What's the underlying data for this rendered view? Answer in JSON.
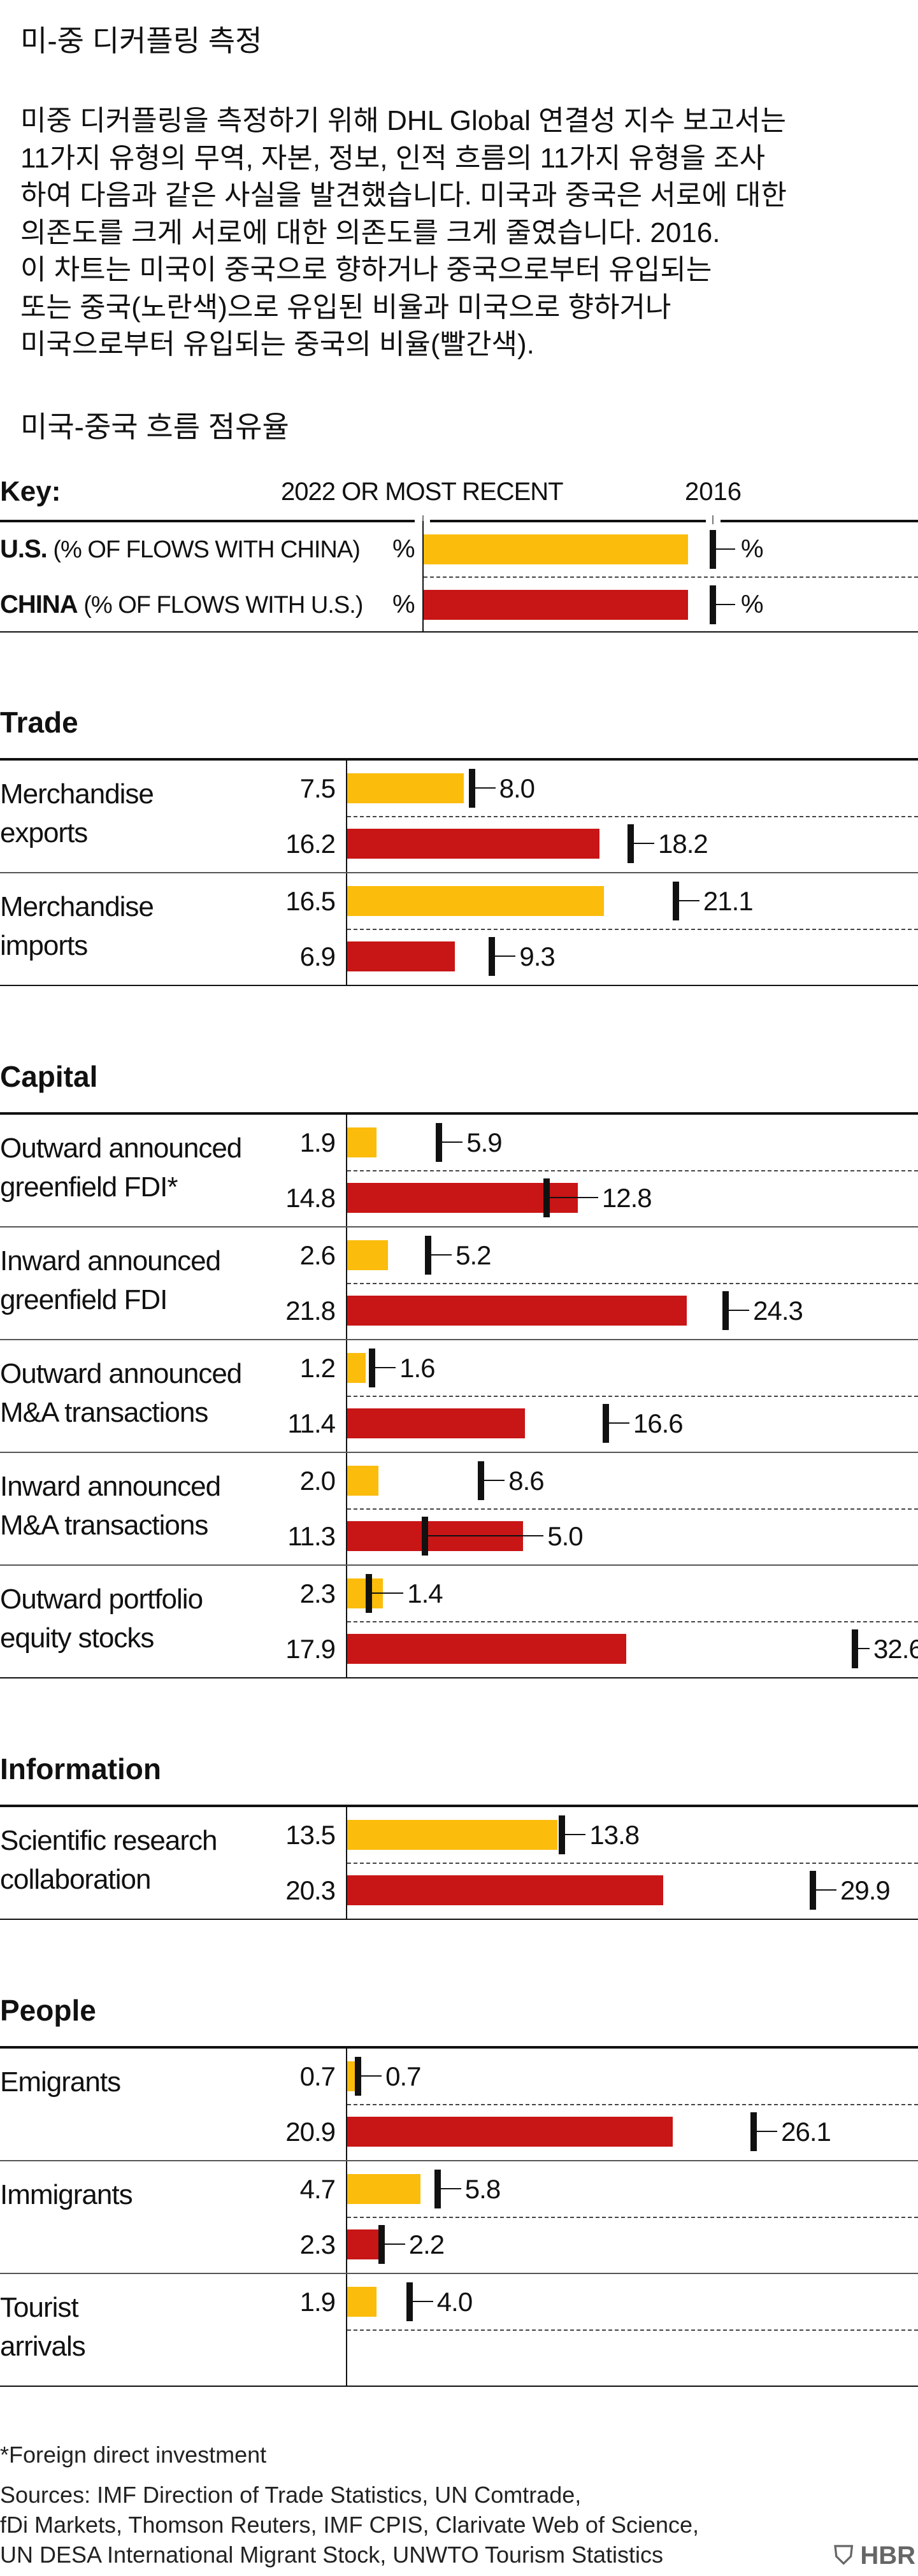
{
  "title": "미-중 디커플링 측정",
  "body_lines": [
    "미중 디커플링을 측정하기 위해 DHL Global 연결성 지수 보고서는",
    "11가지 유형의 무역, 자본, 정보, 인적 흐름의 11가지 유형을 조사",
    "하여 다음과 같은 사실을 발견했습니다. 미국과 중국은 서로에 대한",
    "의존도를 크게 서로에 대한 의존도를 크게 줄였습니다. 2016.",
    "이 차트는 미국이 중국으로 향하거나 중국으로부터 유입되는",
    "또는 중국(노란색)으로 유입된 비율과 미국으로 향하거나",
    "미국으로부터 유입되는 중국의 비율(빨간색)."
  ],
  "subtitle": "미국-중국 흐름 점유율",
  "key": {
    "title": "Key:",
    "current_label": "2022 OR MOST RECENT",
    "baseline_label": "2016",
    "rows": [
      {
        "bold": "U.S.",
        "rest": " (% OF FLOWS WITH CHINA)",
        "unit": "%",
        "unit2": "%",
        "color": "#FBBC0C"
      },
      {
        "bold": "CHINA",
        "rest": " (% OF FLOWS WITH U.S.)",
        "unit": "%",
        "unit2": "%",
        "color": "#C81516"
      }
    ]
  },
  "colors": {
    "us": "#FBBC0C",
    "china": "#C81516"
  },
  "chart_data": {
    "type": "bar",
    "orientation": "horizontal",
    "xlim": [
      0,
      33
    ],
    "series": [
      {
        "name": "U.S. (% OF FLOWS WITH CHINA)",
        "color": "#FBBC0C"
      },
      {
        "name": "CHINA (% OF FLOWS WITH U.S.)",
        "color": "#C81516"
      }
    ],
    "sections": [
      {
        "title": "Trade",
        "items": [
          {
            "label": [
              "Merchandise",
              "exports"
            ],
            "us": [
              7.5,
              8.0
            ],
            "china": [
              16.2,
              18.2
            ]
          },
          {
            "label": [
              "Merchandise",
              "imports"
            ],
            "us": [
              16.5,
              21.1
            ],
            "china": [
              6.9,
              9.3
            ]
          }
        ]
      },
      {
        "title": "Capital",
        "items": [
          {
            "label": [
              "Outward announced",
              "greenfield FDI*"
            ],
            "us": [
              1.9,
              5.9
            ],
            "china": [
              14.8,
              12.8
            ]
          },
          {
            "label": [
              "Inward announced",
              "greenfield FDI"
            ],
            "us": [
              2.6,
              5.2
            ],
            "china": [
              21.8,
              24.3
            ]
          },
          {
            "label": [
              "Outward announced",
              "M&A transactions"
            ],
            "us": [
              1.2,
              1.6
            ],
            "china": [
              11.4,
              16.6
            ]
          },
          {
            "label": [
              "Inward announced",
              "M&A transactions"
            ],
            "us": [
              2.0,
              8.6
            ],
            "china": [
              11.3,
              5.0
            ]
          },
          {
            "label": [
              "Outward portfolio",
              "equity stocks"
            ],
            "us": [
              2.3,
              1.4
            ],
            "china": [
              17.9,
              32.6
            ]
          }
        ]
      },
      {
        "title": "Information",
        "items": [
          {
            "label": [
              "Scientific research",
              "collaboration"
            ],
            "us": [
              13.5,
              13.8
            ],
            "china": [
              20.3,
              29.9
            ]
          }
        ]
      },
      {
        "title": "People",
        "items": [
          {
            "label": [
              "Emigrants"
            ],
            "us": [
              0.7,
              0.7
            ],
            "china": [
              20.9,
              26.1
            ]
          },
          {
            "label": [
              "Immigrants"
            ],
            "us": [
              4.7,
              5.8
            ],
            "china": [
              2.3,
              2.2
            ]
          },
          {
            "label": [
              "Tourist",
              "arrivals"
            ],
            "us": [
              1.9,
              4.0
            ],
            "china": null
          }
        ]
      }
    ]
  },
  "footnote": "*Foreign direct investment",
  "sources": [
    "Sources: IMF Direction of Trade Statistics, UN Comtrade,",
    "fDi Markets, Thomson Reuters, IMF CPIS, Clarivate Web of Science,",
    "UN DESA International Migrant Stock, UNWTO Tourism Statistics"
  ],
  "logo": "HBR"
}
